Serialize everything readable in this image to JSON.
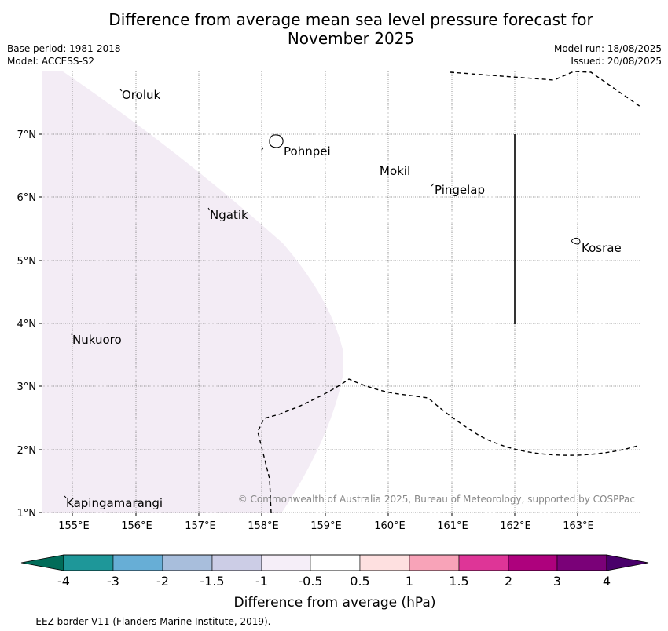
{
  "header": {
    "title_line1": "Difference from average mean sea level pressure forecast for",
    "title_line2": "November 2025",
    "base_period": "Base period: 1981-2018",
    "model": "Model: ACCESS-S2",
    "model_run": "Model run: 18/08/2025",
    "issued": "Issued: 20/08/2025"
  },
  "map": {
    "lon_labels": [
      "155°E",
      "156°E",
      "157°E",
      "158°E",
      "159°E",
      "160°E",
      "161°E",
      "162°E",
      "163°E"
    ],
    "lat_labels": [
      "7°N",
      "6°N",
      "5°N",
      "4°N",
      "3°N",
      "2°N",
      "1°N"
    ],
    "places": [
      {
        "name": "Oroluk"
      },
      {
        "name": "Pohnpei"
      },
      {
        "name": "Mokil"
      },
      {
        "name": "Pingelap"
      },
      {
        "name": "Ngatik"
      },
      {
        "name": "Kosrae"
      },
      {
        "name": "Nukuoro"
      },
      {
        "name": "Kapingamarangi"
      }
    ],
    "anomaly_fill_color": "#f3ecf5",
    "copyright": "© Commonwealth of Australia 2025, Bureau of Meteorology, supported by COSPPac"
  },
  "colorbar": {
    "tick_labels": [
      "-4",
      "-3",
      "-2",
      "-1.5",
      "-1",
      "-0.5",
      "0.5",
      "1",
      "1.5",
      "2",
      "3",
      "4"
    ],
    "colors": [
      "#1e9799",
      "#67aed6",
      "#a8bedc",
      "#cccde6",
      "#f5eef8",
      "#ffffff",
      "#fee0e0",
      "#f8a3b8",
      "#de3597",
      "#ae017d",
      "#7a0178"
    ],
    "under_color": "#016c59",
    "over_color": "#49006a",
    "label": "Difference from average (hPa)"
  },
  "footer": {
    "legend_note": "--  --  -- EEZ border V11 (Flanders Marine Institute, 2019)."
  }
}
